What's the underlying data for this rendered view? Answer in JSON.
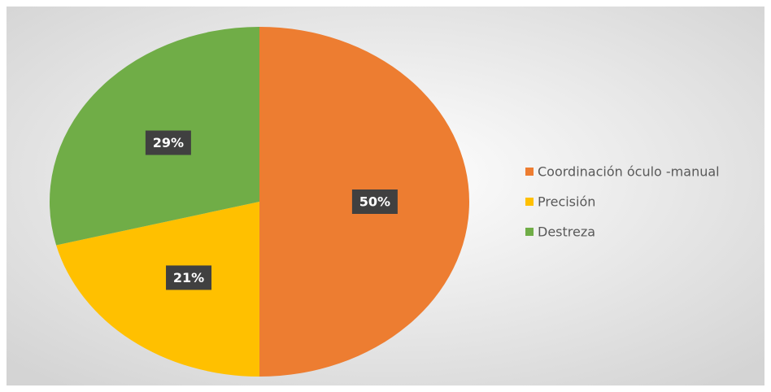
{
  "chart_data": {
    "type": "pie",
    "categories": [
      "Coordinación óculo -manual",
      "Precisión",
      "Destreza"
    ],
    "values": [
      50,
      21,
      29
    ],
    "value_labels": [
      "50%",
      "21%",
      "29%"
    ],
    "colors": [
      "#ED7D31",
      "#FFC000",
      "#70AD47"
    ],
    "legend": "right"
  }
}
